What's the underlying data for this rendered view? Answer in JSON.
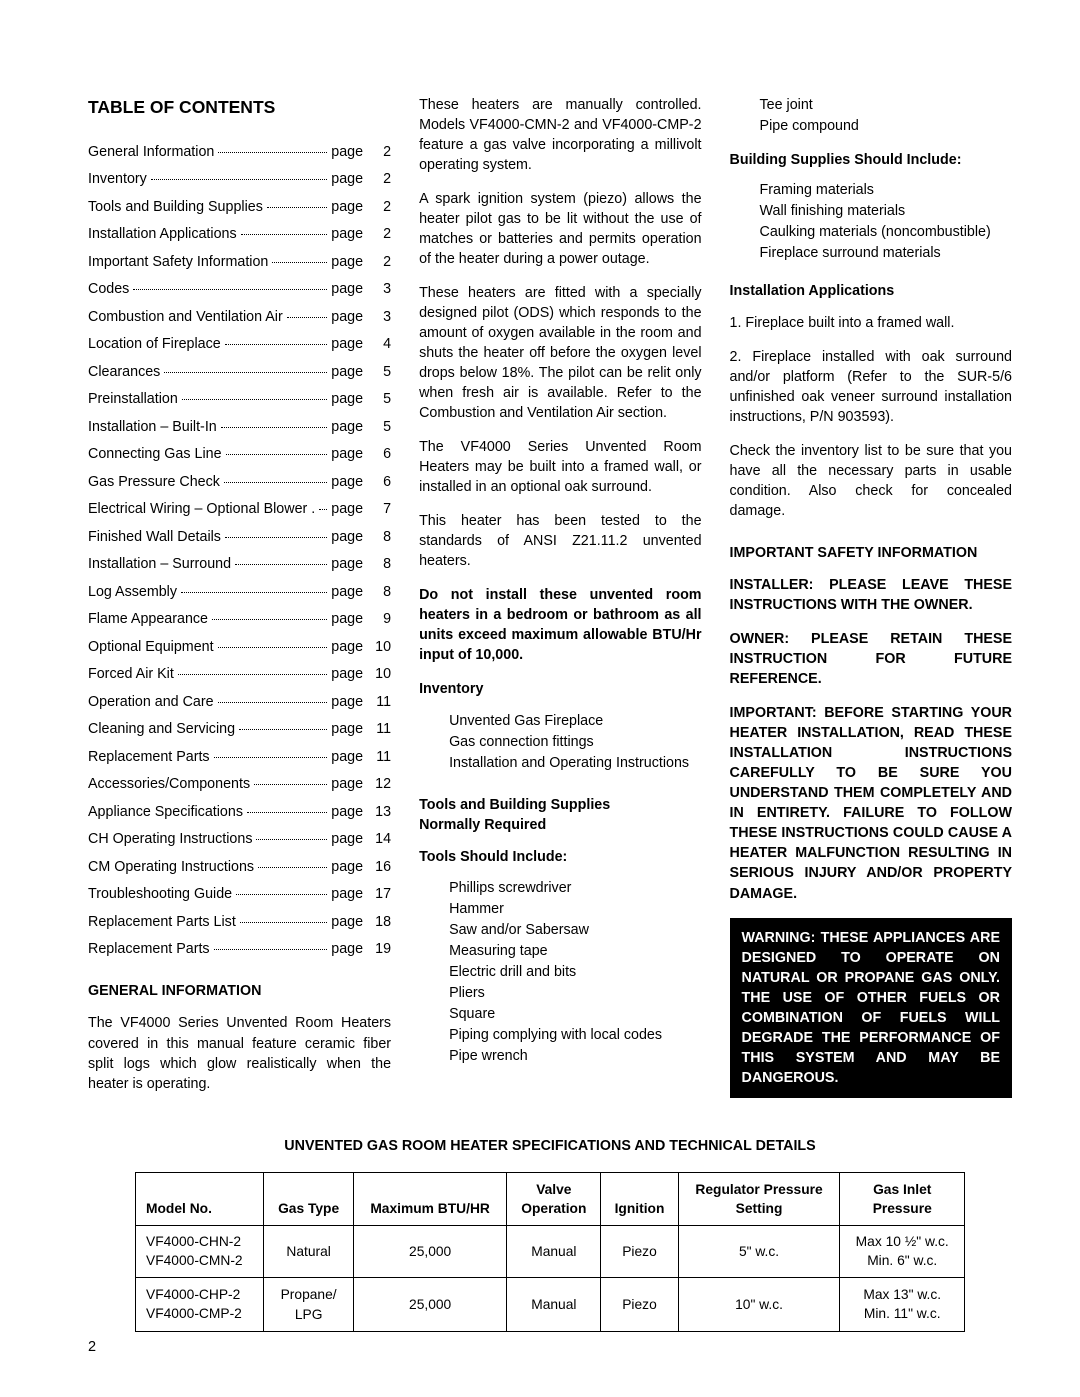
{
  "page_number": "2",
  "toc_heading": "TABLE OF CONTENTS",
  "toc": [
    {
      "title": "General Information",
      "page": "2"
    },
    {
      "title": "Inventory",
      "page": "2"
    },
    {
      "title": "Tools and Building Supplies",
      "page": "2"
    },
    {
      "title": "Installation Applications",
      "page": "2"
    },
    {
      "title": "Important Safety Information",
      "page": "2"
    },
    {
      "title": "Codes",
      "page": "3"
    },
    {
      "title": "Combustion and Ventilation Air",
      "page": "3"
    },
    {
      "title": "Location of Fireplace",
      "page": "4"
    },
    {
      "title": "Clearances",
      "page": "5"
    },
    {
      "title": "Preinstallation",
      "page": "5"
    },
    {
      "title": "Installation – Built-In",
      "page": "5"
    },
    {
      "title": "Connecting Gas Line",
      "page": "6"
    },
    {
      "title": "Gas Pressure Check",
      "page": "6"
    },
    {
      "title": "Electrical Wiring – Optional Blower .",
      "page": "7"
    },
    {
      "title": "Finished Wall Details",
      "page": "8"
    },
    {
      "title": "Installation – Surround",
      "page": "8"
    },
    {
      "title": "Log Assembly",
      "page": "8"
    },
    {
      "title": "Flame Appearance",
      "page": "9"
    },
    {
      "title": "Optional Equipment",
      "page": "10"
    },
    {
      "title": "Forced Air Kit",
      "page": "10"
    },
    {
      "title": "Operation and Care",
      "page": "11"
    },
    {
      "title": "Cleaning and Servicing",
      "page": "11"
    },
    {
      "title": "Replacement Parts",
      "page": "11"
    },
    {
      "title": "Accessories/Components",
      "page": "12"
    },
    {
      "title": "Appliance Specifications",
      "page": "13"
    },
    {
      "title": "CH Operating Instructions",
      "page": "14"
    },
    {
      "title": "CM Operating Instructions",
      "page": "16"
    },
    {
      "title": "Troubleshooting Guide",
      "page": "17"
    },
    {
      "title": "Replacement Parts List",
      "page": "18"
    },
    {
      "title": "Replacement Parts",
      "page": "19"
    }
  ],
  "page_word": "page",
  "col1": {
    "gen_info_h": "GENERAL INFORMATION",
    "gen_info_p": "The VF4000 Series Unvented Room Heaters covered in this manual feature ceramic fiber split logs which glow realistically when the heater is operating."
  },
  "col2": {
    "p1": "These heaters are manually controlled. Models VF4000-CMN-2 and VF4000-CMP-2 feature a gas valve incorporating a millivolt operating system.",
    "p2": "A spark ignition system (piezo) allows the heater pilot gas to be lit without the use of matches or batteries and permits operation of the heater during a power outage.",
    "p3": "These heaters are fitted with a specially designed pilot (ODS) which responds to the amount of oxygen available in the room and shuts the heater off before the oxygen level drops below 18%. The pilot can be relit only when fresh air is available. Refer to the Combustion and Ventilation Air section.",
    "p4": "The VF4000 Series Unvented Room Heaters may be built into a framed wall, or installed in an optional oak surround.",
    "p5": "This heater has been tested to the standards of ANSI Z21.11.2 unvented heaters.",
    "p6_bold": "Do not install these unvented room heaters in a bedroom or bathroom as all units exceed maximum allowable BTU/Hr input of 10,000.",
    "inv_h": "Inventory",
    "inv_items": [
      "Unvented Gas Fireplace",
      "Gas connection fittings",
      "Installation and Operating Instructions"
    ],
    "tools_h1": "Tools and Building Supplies",
    "tools_h2": "Normally Required",
    "tools_sub": "Tools Should Include:",
    "tools": [
      "Phillips screwdriver",
      "Hammer",
      "Saw and/or Sabersaw",
      "Measuring tape",
      "Electric drill and bits",
      "Pliers",
      "Square",
      "Piping complying with local codes",
      "Pipe wrench"
    ]
  },
  "col3": {
    "extra_tools": [
      "Tee joint",
      "Pipe compound"
    ],
    "bld_h": "Building Supplies Should Include:",
    "bld_items": [
      "Framing materials",
      "Wall finishing materials",
      "Caulking materials (noncombustible)",
      "Fireplace surround materials"
    ],
    "inst_app_h": "Installation Applications",
    "inst_1": "1. Fireplace built into a framed wall.",
    "inst_2": "2. Fireplace installed with oak surround and/or platform (Refer to the SUR-5/6 unfinished oak veneer surround installation instructions, P/N 903593).",
    "inst_check": "Check the inventory list to be sure that you have all the necessary parts in usable condition. Also check for concealed damage.",
    "safety_h": "IMPORTANT SAFETY INFORMATION",
    "safety_1": "INSTALLER: PLEASE LEAVE THESE INSTRUCTIONS WITH THE OWNER.",
    "safety_2": "OWNER: PLEASE RETAIN THESE INSTRUCTION FOR FUTURE REFERENCE.",
    "safety_3": "IMPORTANT: BEFORE STARTING YOUR HEATER INSTALLATION, READ THESE INSTALLATION INSTRUCTIONS CAREFULLY TO BE SURE YOU UNDERSTAND THEM COMPLETELY AND IN ENTIRETY. FAILURE TO FOLLOW THESE INSTRUCTIONS COULD CAUSE A HEATER MALFUNCTION RESULTING IN SERIOUS INJURY AND/OR PROPERTY DAMAGE.",
    "warn": "WARNING: THESE APPLIANCES ARE DESIGNED TO OPERATE ON NATURAL OR PROPANE GAS ONLY.  THE USE OF OTHER FUELS OR COMBINATION OF FUELS WILL DEGRADE THE PERFORMANCE OF THIS SYSTEM AND MAY BE DANGEROUS."
  },
  "spec": {
    "title": "UNVENTED GAS ROOM HEATER SPECIFICATIONS AND TECHNICAL DETAILS",
    "headers": [
      "Model No.",
      "Gas Type",
      "Maximum BTU/HR",
      "Valve\nOperation",
      "Ignition",
      "Regulator Pressure\nSetting",
      "Gas Inlet\nPressure"
    ],
    "rows": [
      {
        "model": [
          "VF4000-CHN-2",
          "VF4000-CMN-2"
        ],
        "gas": "Natural",
        "btu": "25,000",
        "valve": "Manual",
        "ign": "Piezo",
        "reg": "5\" w.c.",
        "inlet": [
          "Max 10 ½\" w.c.",
          "Min. 6\" w.c."
        ]
      },
      {
        "model": [
          "VF4000-CHP-2",
          "VF4000-CMP-2"
        ],
        "gas": "Propane/\nLPG",
        "btu": "25,000",
        "valve": "Manual",
        "ign": "Piezo",
        "reg": "10\" w.c.",
        "inlet": [
          "Max 13\" w.c.",
          "Min. 11\" w.c."
        ]
      }
    ]
  }
}
